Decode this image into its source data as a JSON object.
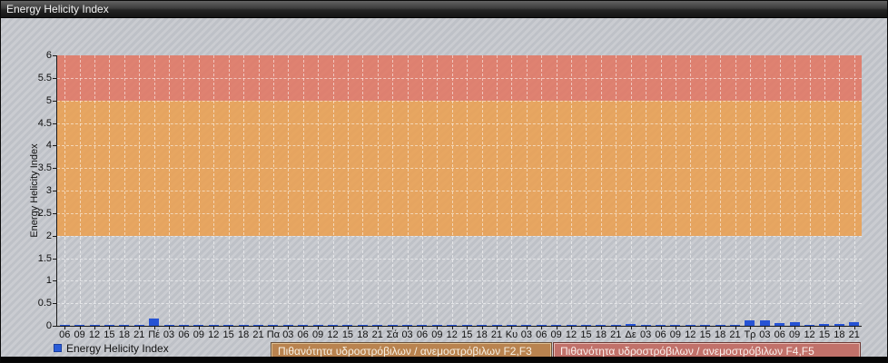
{
  "window": {
    "title": "Energy Helicity Index"
  },
  "chart_data": {
    "type": "bar",
    "title": "Energy Helicity Index",
    "ylabel": "Energy Helicity Index",
    "xlabel": "",
    "ylim": [
      0,
      6
    ],
    "yticks": [
      "0",
      "0.5",
      "1",
      "1.5",
      "2",
      "2.5",
      "3",
      "3.5",
      "4",
      "4.5",
      "5",
      "5.5",
      "6"
    ],
    "grid": true,
    "background_hatch": true,
    "categories": [
      "06",
      "09",
      "12",
      "15",
      "18",
      "21",
      "Πέ",
      "03",
      "06",
      "09",
      "12",
      "15",
      "18",
      "21",
      "Πα",
      "03",
      "06",
      "09",
      "12",
      "15",
      "18",
      "21",
      "Σά",
      "03",
      "06",
      "09",
      "12",
      "15",
      "18",
      "21",
      "Κυ",
      "03",
      "06",
      "09",
      "12",
      "15",
      "18",
      "21",
      "Δε",
      "03",
      "06",
      "09",
      "12",
      "15",
      "18",
      "21",
      "Τρ",
      "03",
      "06",
      "09",
      "12",
      "15",
      "18",
      "21"
    ],
    "values": [
      0.02,
      0.02,
      0.02,
      0.03,
      0.03,
      0.02,
      0.16,
      0.03,
      0.02,
      0.02,
      0.02,
      0.03,
      0.02,
      0.03,
      0.02,
      0.03,
      0.02,
      0.02,
      0.02,
      0.02,
      0.02,
      0.02,
      0.02,
      0.03,
      0.03,
      0.02,
      0.02,
      0.02,
      0.02,
      0.02,
      0.02,
      0.02,
      0.02,
      0.02,
      0.02,
      0.02,
      0.02,
      0.03,
      0.04,
      0.03,
      0.02,
      0.03,
      0.03,
      0.03,
      0.02,
      0.03,
      0.13,
      0.12,
      0.06,
      0.08,
      0.03,
      0.05,
      0.04,
      0.09
    ],
    "bar_color": "#2653d4",
    "series_name": "Energy Helicity Index",
    "day_labels": [
      "Πέ",
      "Πα",
      "Σά",
      "Κυ",
      "Δε",
      "Τρ"
    ],
    "bands": [
      {
        "from": 2,
        "to": 5,
        "color": "#ec9f4e",
        "label": "Πιθανότητα υδροστρόβιλων / ανεμοστρόβιλων F2,F3"
      },
      {
        "from": 5,
        "to": 6,
        "color": "#e37460",
        "label": "Πιθανότητα υδροστρόβιλων / ανεμοστρόβιλων F4,F5"
      }
    ],
    "legend": {
      "label": "Energy Helicity Index",
      "position": "bottom-left"
    }
  }
}
